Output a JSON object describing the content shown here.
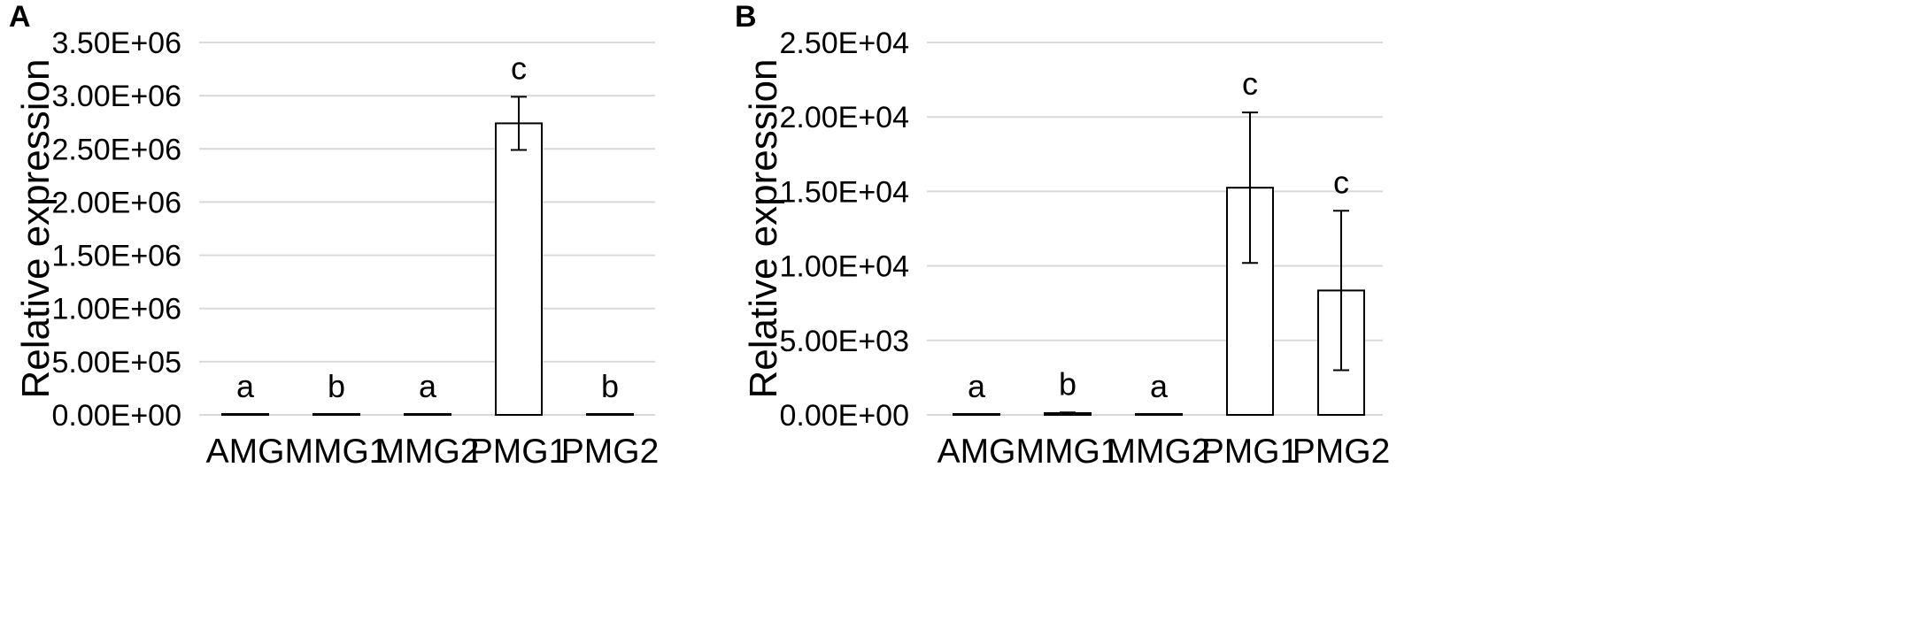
{
  "chart_data": [
    {
      "type": "bar",
      "panel": "A",
      "ylabel": "Relative expression",
      "xlabel": "",
      "categories": [
        "AMG",
        "MMG1",
        "MMG2",
        "PMG1",
        "PMG2"
      ],
      "values": [
        0,
        0,
        0,
        2740000,
        0
      ],
      "errors": [
        0,
        0,
        0,
        250000,
        0
      ],
      "significance": [
        "a",
        "b",
        "a",
        "c",
        "b"
      ],
      "ylim": [
        0,
        3500000
      ],
      "yticks": [
        0,
        500000,
        1000000,
        1500000,
        2000000,
        2500000,
        3000000,
        3500000
      ],
      "ytick_labels": [
        "0.00E+00",
        "5.00E+05",
        "1.00E+06",
        "1.50E+06",
        "2.00E+06",
        "2.50E+06",
        "3.00E+06",
        "3.50E+06"
      ],
      "grid": true,
      "colors": {
        "bar_fill": "#ffffff",
        "bar_stroke": "#000000",
        "grid": "#d9d9d9"
      }
    },
    {
      "type": "bar",
      "panel": "B",
      "ylabel": "Relative expression",
      "xlabel": "",
      "categories": [
        "AMG",
        "MMG1",
        "MMG2",
        "PMG1",
        "PMG2"
      ],
      "values": [
        0,
        120,
        0,
        15250,
        8350
      ],
      "errors": [
        0,
        40,
        0,
        5050,
        5350
      ],
      "significance": [
        "a",
        "b",
        "a",
        "c",
        "c"
      ],
      "ylim": [
        0,
        25000
      ],
      "yticks": [
        0,
        5000,
        10000,
        15000,
        20000,
        25000
      ],
      "ytick_labels": [
        "0.00E+00",
        "5.00E+03",
        "1.00E+04",
        "1.50E+04",
        "2.00E+04",
        "2.50E+04"
      ],
      "grid": true,
      "colors": {
        "bar_fill": "#ffffff",
        "bar_stroke": "#000000",
        "grid": "#d9d9d9"
      }
    }
  ]
}
